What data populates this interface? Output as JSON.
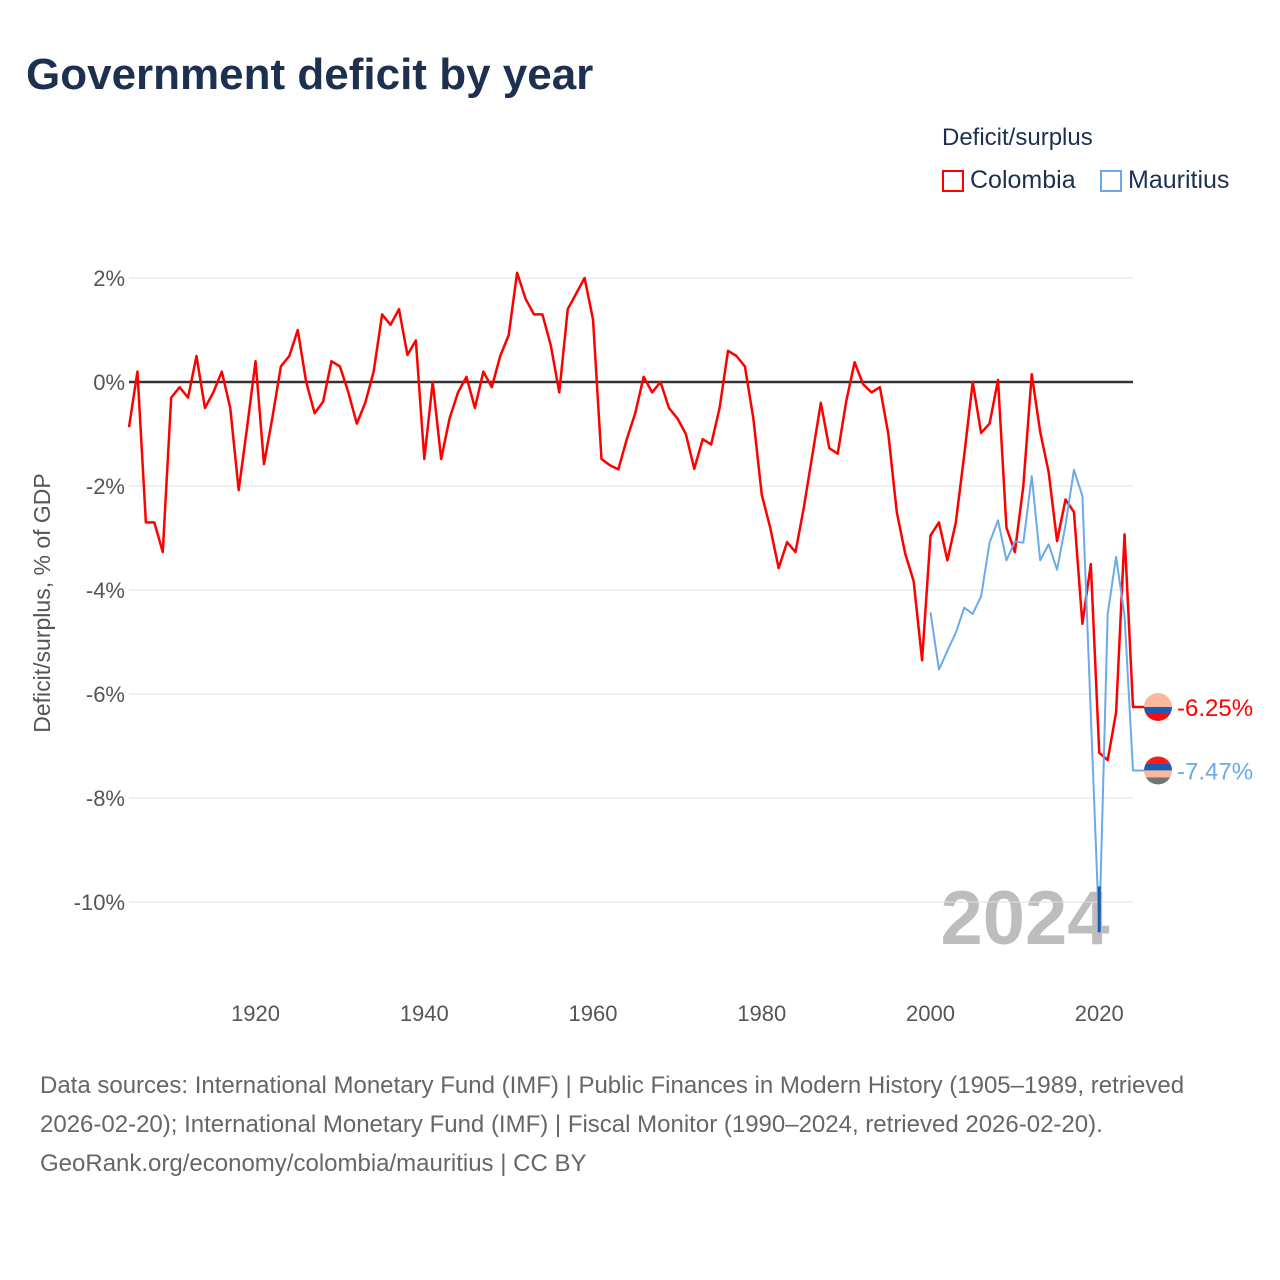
{
  "chart_data": {
    "type": "line",
    "title": "Government deficit by year",
    "ylabel": "Deficit/surplus, % of GDP",
    "xlabel": "",
    "xlim": [
      1905,
      2024
    ],
    "ylim": [
      -10.8,
      2.3
    ],
    "grid": true,
    "legend_title": "Deficit/surplus",
    "legend_position": "top-right",
    "y_ticks": [
      {
        "v": 2,
        "label": "2%"
      },
      {
        "v": 0,
        "label": "0%"
      },
      {
        "v": -2,
        "label": "-2%"
      },
      {
        "v": -4,
        "label": "-4%"
      },
      {
        "v": -6,
        "label": "-6%"
      },
      {
        "v": -8,
        "label": "-8%"
      },
      {
        "v": -10,
        "label": "-10%"
      }
    ],
    "x_ticks": [
      {
        "v": 1920,
        "label": "1920"
      },
      {
        "v": 1940,
        "label": "1940"
      },
      {
        "v": 1960,
        "label": "1960"
      },
      {
        "v": 1980,
        "label": "1980"
      },
      {
        "v": 2000,
        "label": "2000"
      },
      {
        "v": 2020,
        "label": "2020"
      }
    ],
    "year_watermark": "2024",
    "series": [
      {
        "name": "Colombia",
        "color": "#ff0000",
        "end_label": "-6.25%",
        "flag_colors": [
          "#fcb89c",
          "#1a5cb4",
          "#ff0a0a"
        ],
        "start_year": 1905,
        "values": [
          -0.87,
          0.2,
          -2.7,
          -2.7,
          -3.27,
          -0.3,
          -0.1,
          -0.3,
          0.5,
          -0.5,
          -0.2,
          0.2,
          -0.5,
          -2.08,
          -0.87,
          0.4,
          -1.58,
          -0.68,
          0.3,
          0.5,
          1.0,
          0,
          -0.6,
          -0.38,
          0.4,
          0.3,
          -0.2,
          -0.8,
          -0.4,
          0.2,
          1.3,
          1.1,
          1.4,
          0.52,
          0.8,
          -1.48,
          0,
          -1.48,
          -0.7,
          -0.2,
          0.1,
          -0.5,
          0.2,
          -0.1,
          0.5,
          0.9,
          2.1,
          1.6,
          1.3,
          1.3,
          0.7,
          -0.2,
          1.4,
          1.7,
          2.0,
          1.2,
          -1.48,
          -1.6,
          -1.68,
          -1.1,
          -0.6,
          0.1,
          -0.2,
          0,
          -0.5,
          -0.7,
          -1.0,
          -1.67,
          -1.1,
          -1.2,
          -0.5,
          0.6,
          0.5,
          0.3,
          -0.7,
          -2.17,
          -2.8,
          -3.58,
          -3.08,
          -3.27,
          -2.4,
          -1.4,
          -0.4,
          -1.27,
          -1.38,
          -0.38,
          0.38,
          -0.04,
          -0.2,
          -0.1,
          -1.0,
          -2.5,
          -3.3,
          -3.83,
          -5.35,
          -2.95,
          -2.7,
          -3.43,
          -2.7,
          -1.4,
          0,
          -0.98,
          -0.8,
          0.04,
          -2.8,
          -3.27,
          -2.0,
          0.15,
          -0.96,
          -1.73,
          -3.06,
          -2.26,
          -2.5,
          -4.65,
          -3.5,
          -7.13,
          -7.27,
          -6.35,
          -2.93,
          -6.25
        ]
      },
      {
        "name": "Mauritius",
        "color": "#6aaaea",
        "end_label": "-7.47%",
        "flag_colors": [
          "#ff1a1a",
          "#1a5cb4",
          "#fcb89c",
          "#6f7572"
        ],
        "start_year": 2000,
        "values": [
          -4.43,
          -5.53,
          -5.17,
          -4.82,
          -4.34,
          -4.46,
          -4.12,
          -3.09,
          -2.66,
          -3.43,
          -3.07,
          -3.09,
          -1.81,
          -3.43,
          -3.12,
          -3.61,
          -2.75,
          -1.69,
          -2.19,
          -6.4,
          -10.58,
          -4.46,
          -3.36,
          -4.5,
          -7.47
        ]
      }
    ]
  },
  "footer": {
    "sources": "Data sources: International Monetary Fund (IMF) | Public Finances in Modern History (1905–1989, retrieved 2026-02-20); International Monetary Fund (IMF) | Fiscal Monitor (1990–2024, retrieved 2026-02-20).",
    "credit": "GeoRank.org/economy/colombia/mauritius | CC BY"
  }
}
